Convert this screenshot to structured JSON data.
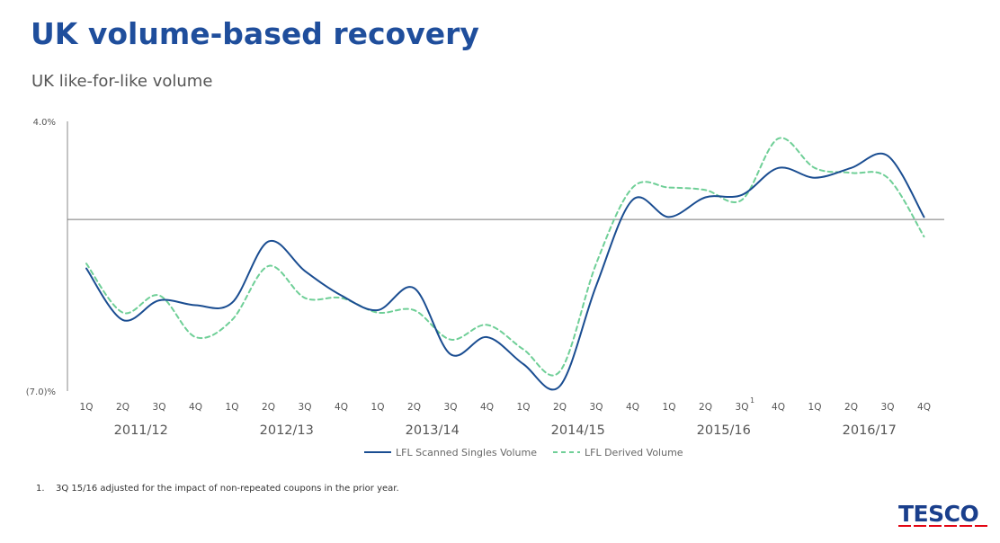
{
  "header": {
    "title": "UK volume-based recovery",
    "subtitle": "UK like-for-like volume"
  },
  "footnote": {
    "number": "1.",
    "text": "3Q 15/16 adjusted for the impact of non-repeated coupons in the prior year."
  },
  "logo": {
    "text": "TESCO",
    "stripe_color": "#e30613",
    "text_color": "#1a3f8c"
  },
  "colors": {
    "scanned": "#1a4d91",
    "derived": "#6fcf97",
    "axis": "#888888"
  },
  "chart_data": {
    "type": "line",
    "ylim": [
      -7.0,
      4.0
    ],
    "y_tick_labels": [
      "4.0%",
      "(7.0)%"
    ],
    "y_ticks": [
      4.0,
      -7.0
    ],
    "zero_line": true,
    "categories": [
      "1Q",
      "2Q",
      "3Q",
      "4Q",
      "1Q",
      "2Q",
      "3Q",
      "4Q",
      "1Q",
      "2Q",
      "3Q",
      "4Q",
      "1Q",
      "2Q",
      "3Q",
      "4Q",
      "1Q",
      "2Q",
      "3Q",
      "4Q",
      "1Q",
      "2Q",
      "3Q",
      "4Q"
    ],
    "category_superscripts": {
      "18": "1"
    },
    "groups": [
      {
        "label": "2011/12",
        "start": 0,
        "end": 3
      },
      {
        "label": "2012/13",
        "start": 4,
        "end": 7
      },
      {
        "label": "2013/14",
        "start": 8,
        "end": 11
      },
      {
        "label": "2014/15",
        "start": 12,
        "end": 15
      },
      {
        "label": "2015/16",
        "start": 16,
        "end": 19
      },
      {
        "label": "2016/17",
        "start": 20,
        "end": 23
      }
    ],
    "series": [
      {
        "name": "LFL Scanned Singles Volume",
        "style": "solid",
        "values": [
          -2.0,
          -4.1,
          -3.3,
          -3.5,
          -3.4,
          -0.9,
          -2.1,
          -3.1,
          -3.7,
          -2.8,
          -5.5,
          -4.8,
          -5.9,
          -6.8,
          -2.7,
          0.8,
          0.1,
          0.9,
          1.0,
          2.1,
          1.7,
          2.1,
          2.6,
          0.1
        ]
      },
      {
        "name": "LFL Derived Volume",
        "style": "dashed",
        "values": [
          -1.8,
          -3.8,
          -3.1,
          -4.8,
          -4.1,
          -1.9,
          -3.2,
          -3.2,
          -3.8,
          -3.7,
          -4.9,
          -4.3,
          -5.3,
          -6.2,
          -1.8,
          1.3,
          1.3,
          1.2,
          0.8,
          3.3,
          2.1,
          1.9,
          1.7,
          -0.7
        ]
      }
    ]
  }
}
